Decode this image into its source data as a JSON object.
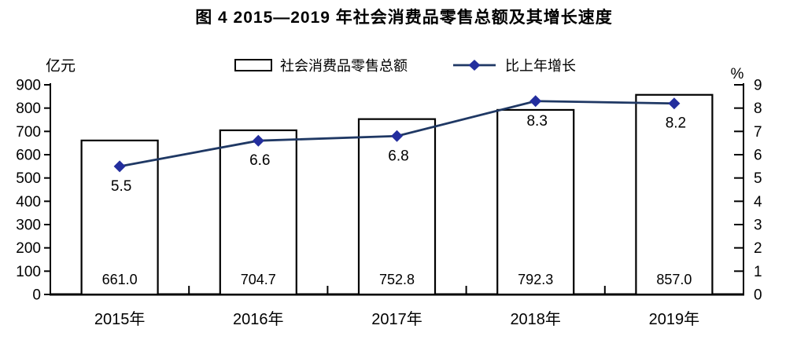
{
  "chart_data": {
    "type": "bar",
    "combo": "bar+line",
    "title": "图 4 2015—2019 年社会消费品零售总额及其增长速度",
    "categories": [
      "2015年",
      "2016年",
      "2017年",
      "2018年",
      "2019年"
    ],
    "series": [
      {
        "name": "社会消费品零售总额",
        "type": "bar",
        "axis": "left",
        "unit": "亿元",
        "values": [
          661.0,
          704.7,
          752.8,
          792.3,
          857.0
        ],
        "value_labels": [
          "661.0",
          "704.7",
          "752.8",
          "792.3",
          "857.0"
        ]
      },
      {
        "name": "比上年增长",
        "type": "line",
        "axis": "right",
        "unit": "%",
        "values": [
          5.5,
          6.6,
          6.8,
          8.3,
          8.2
        ],
        "value_labels": [
          "5.5",
          "6.6",
          "6.8",
          "8.3",
          "8.2"
        ]
      }
    ],
    "left_axis": {
      "label": "亿元",
      "min": 0,
      "max": 900,
      "step": 100,
      "ticks": [
        "0",
        "100",
        "200",
        "300",
        "400",
        "500",
        "600",
        "700",
        "800",
        "900"
      ]
    },
    "right_axis": {
      "label": "%",
      "min": 0,
      "max": 9,
      "step": 1,
      "ticks": [
        "0",
        "1",
        "2",
        "3",
        "4",
        "5",
        "6",
        "7",
        "8",
        "9"
      ]
    },
    "legend_position": "top-center",
    "grid": false,
    "colors": {
      "bar_fill": "#ffffff",
      "bar_border": "#000000",
      "line": "#1f3864",
      "marker": "#232e9e",
      "axis": "#000000",
      "text": "#000000"
    }
  }
}
